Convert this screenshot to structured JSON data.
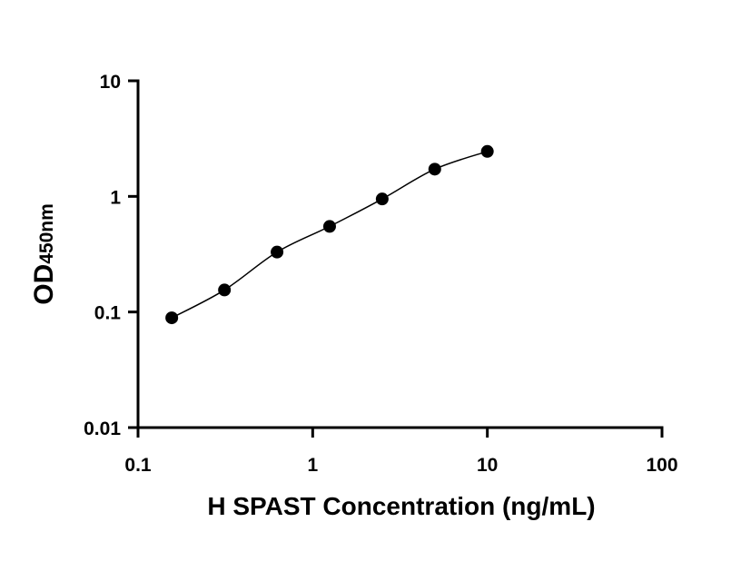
{
  "chart_data": {
    "type": "scatter",
    "xlabel": "H SPAST Concentration (ng/mL)",
    "ylabel_main": "OD",
    "ylabel_sub": "450nm",
    "x_scale": "log",
    "y_scale": "log",
    "xlim": [
      0.1,
      100
    ],
    "ylim": [
      0.01,
      10
    ],
    "x_ticks": [
      0.1,
      1,
      10,
      100
    ],
    "x_tick_labels": [
      "0.1",
      "1",
      "10",
      "100"
    ],
    "y_ticks": [
      0.01,
      0.1,
      1,
      10
    ],
    "y_tick_labels": [
      "0.01",
      "0.1",
      "1",
      "10"
    ],
    "grid": false,
    "series": [
      {
        "x": [
          0.156,
          0.3125,
          0.625,
          1.25,
          2.5,
          5,
          10
        ],
        "y": [
          0.089,
          0.155,
          0.33,
          0.55,
          0.95,
          1.72,
          2.45
        ],
        "marker": "circle",
        "fit_line": true,
        "color": "#000000"
      }
    ]
  }
}
